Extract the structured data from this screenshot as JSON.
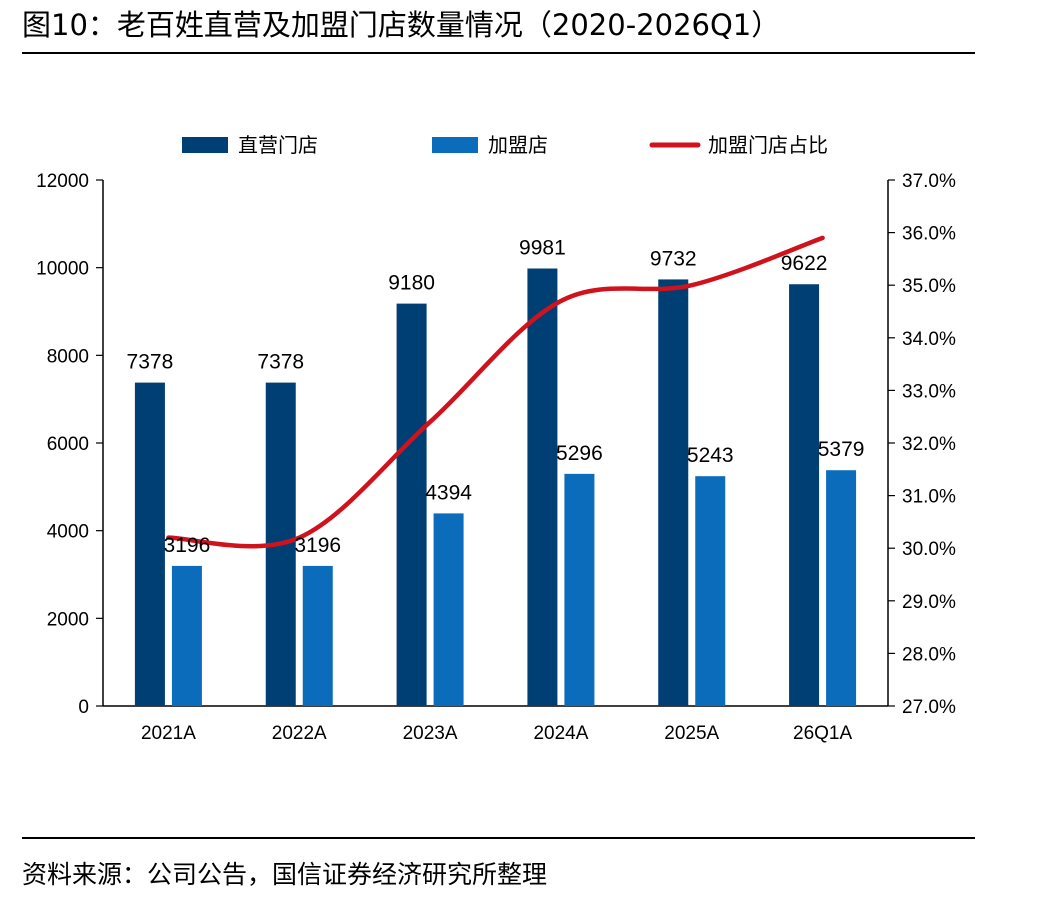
{
  "header": {
    "title": "图10：老百姓直营及加盟门店数量情况（2020-2026Q1）"
  },
  "footer": {
    "source": "资料来源：公司公告，国信证券经济研究所整理"
  },
  "colors": {
    "direct": "#003f73",
    "franchise": "#0b6cbc",
    "ratio": "#d0121c"
  },
  "chart_data": {
    "type": "bar",
    "categories": [
      "2021A",
      "2022A",
      "2023A",
      "2024A",
      "2025A",
      "26Q1A"
    ],
    "series": [
      {
        "name": "直营门店",
        "type": "bar",
        "axis": "left",
        "values": [
          7378,
          7378,
          9180,
          9981,
          9732,
          9622
        ]
      },
      {
        "name": "加盟店",
        "type": "bar",
        "axis": "left",
        "values": [
          3196,
          3196,
          4394,
          5296,
          5243,
          5379
        ]
      },
      {
        "name": "加盟门店占比",
        "type": "line",
        "axis": "right",
        "values": [
          30.2,
          30.2,
          32.4,
          34.7,
          35.0,
          35.9
        ]
      }
    ],
    "data_labels": {
      "direct": [
        "7378",
        "7378",
        "9180",
        "9981",
        "9732",
        "9622"
      ],
      "franchise": [
        "3196",
        "3196",
        "4394",
        "5296",
        "5243",
        "5379"
      ]
    },
    "y_left": {
      "min": 0,
      "max": 12000,
      "ticks": [
        "0",
        "2000",
        "4000",
        "6000",
        "8000",
        "10000",
        "12000"
      ]
    },
    "y_right": {
      "min": 27.0,
      "max": 37.0,
      "ticks": [
        "27.0%",
        "28.0%",
        "29.0%",
        "30.0%",
        "31.0%",
        "32.0%",
        "33.0%",
        "34.0%",
        "35.0%",
        "36.0%",
        "37.0%"
      ]
    },
    "legend_position": "top",
    "grid": false
  }
}
